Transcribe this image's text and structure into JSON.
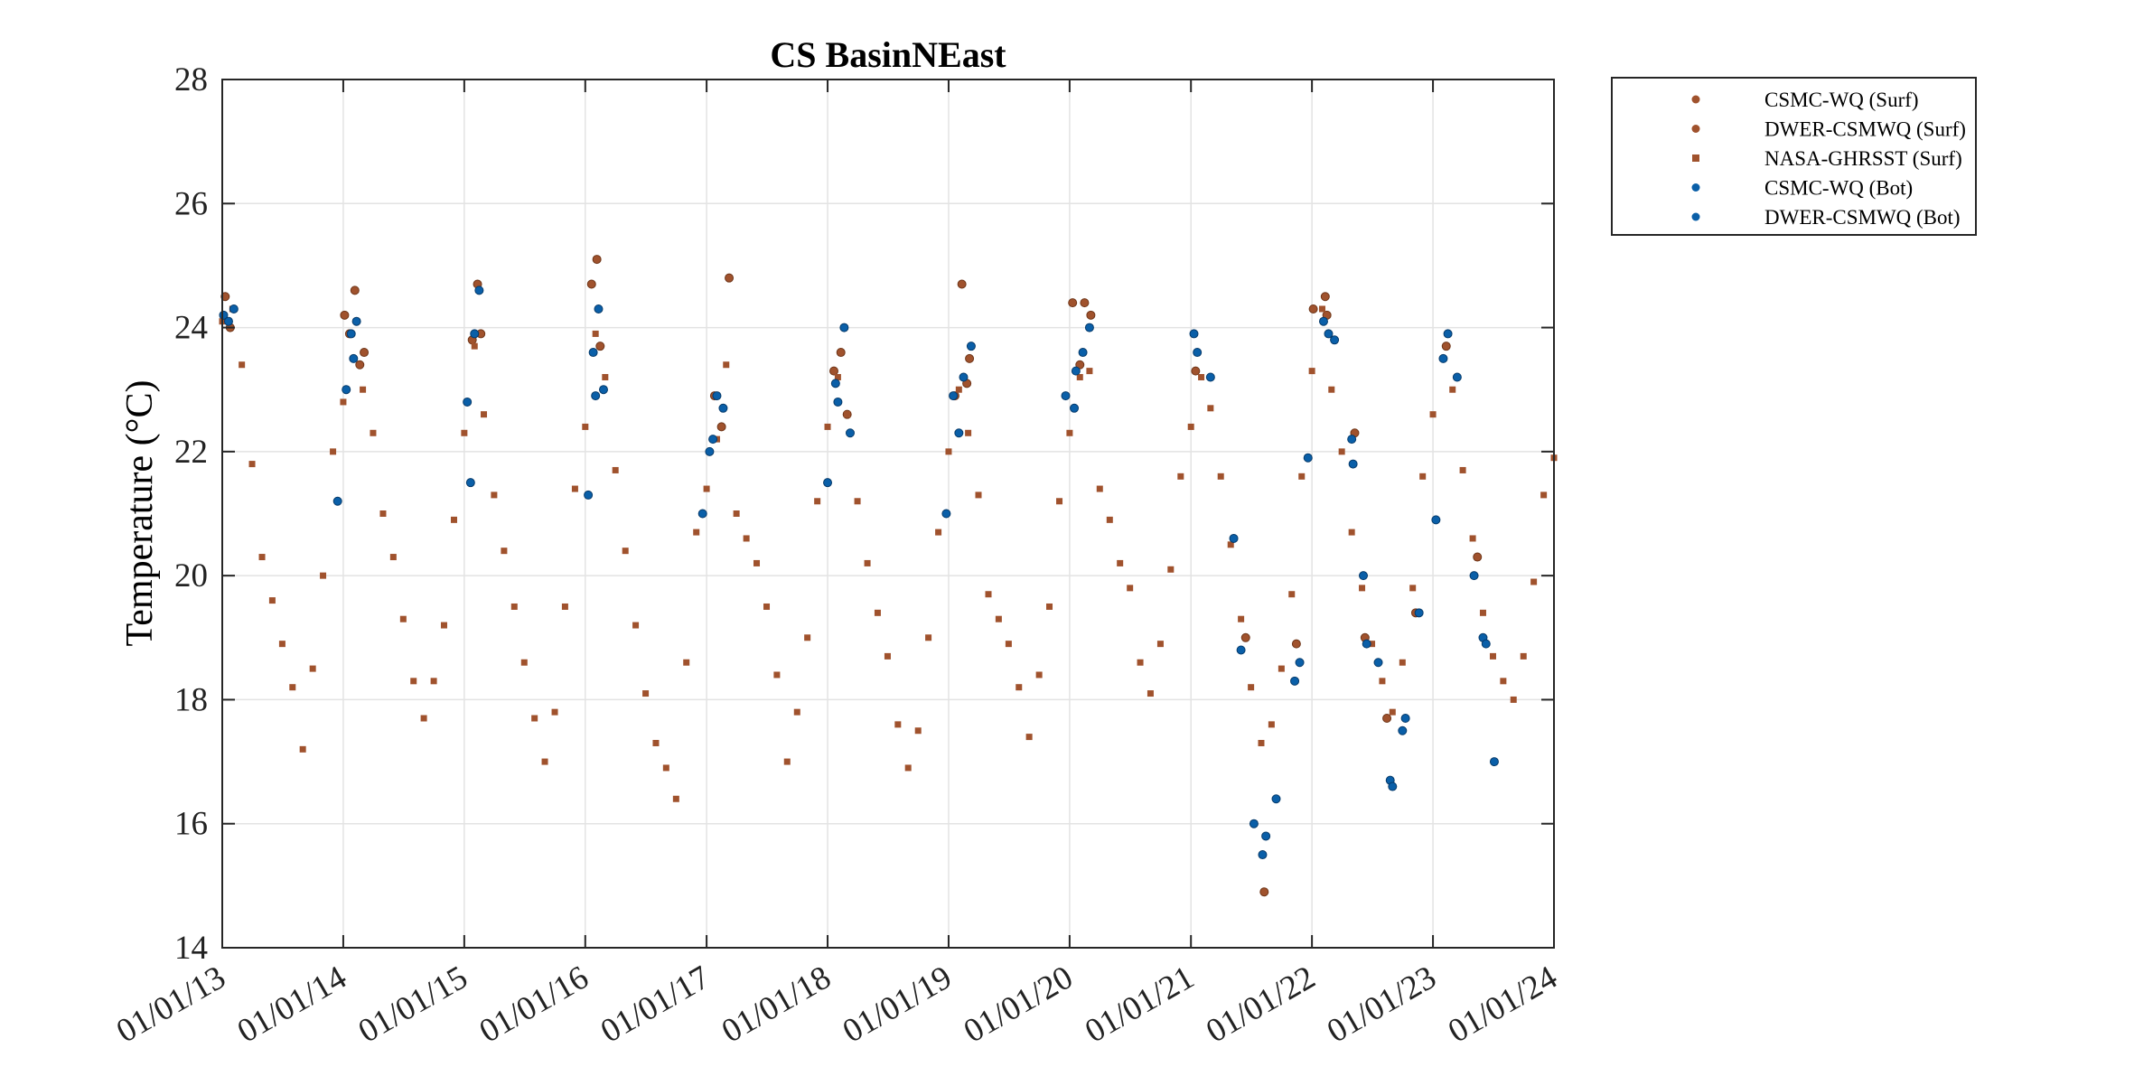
{
  "chart_data": {
    "type": "scatter",
    "title": "CS BasinNEast",
    "ylabel": "Temperature (°C)",
    "xlabel": "",
    "ylim": [
      14,
      28
    ],
    "yticks": [
      14,
      16,
      18,
      20,
      22,
      24,
      26,
      28
    ],
    "xlim": [
      "2013-01-01",
      "2024-01-01"
    ],
    "xticks": [
      "2013-01-01",
      "2014-01-01",
      "2015-01-01",
      "2016-01-01",
      "2017-01-01",
      "2018-01-01",
      "2019-01-01",
      "2020-01-01",
      "2021-01-01",
      "2022-01-01",
      "2023-01-01",
      "2024-01-01"
    ],
    "xtick_labels": [
      "01/01/13",
      "01/01/14",
      "01/01/15",
      "01/01/16",
      "01/01/17",
      "01/01/18",
      "01/01/19",
      "01/01/20",
      "01/01/21",
      "01/01/22",
      "01/01/23",
      "01/01/24"
    ],
    "grid": true,
    "legend_position": "outside-top-right",
    "colors": {
      "surface": "#a0522d",
      "bottom": "#0a5fa8"
    },
    "series": [
      {
        "name": "CSMC-WQ (Surf)",
        "marker": "dot",
        "color": "#a0522d",
        "points": [
          [
            "2013-01-10",
            24.5
          ],
          [
            "2013-01-25",
            24.0
          ],
          [
            "2014-01-05",
            24.2
          ],
          [
            "2014-02-05",
            24.6
          ],
          [
            "2014-03-05",
            23.6
          ],
          [
            "2015-01-25",
            23.8
          ],
          [
            "2015-02-10",
            24.7
          ],
          [
            "2016-01-20",
            24.7
          ],
          [
            "2016-02-05",
            25.1
          ],
          [
            "2017-01-25",
            22.9
          ],
          [
            "2017-03-10",
            24.8
          ],
          [
            "2018-02-10",
            23.6
          ],
          [
            "2019-02-10",
            24.7
          ],
          [
            "2019-03-05",
            23.5
          ],
          [
            "2020-01-10",
            24.4
          ],
          [
            "2020-02-15",
            24.4
          ],
          [
            "2020-03-05",
            24.2
          ],
          [
            "2022-01-05",
            24.3
          ],
          [
            "2022-02-10",
            24.5
          ]
        ]
      },
      {
        "name": "DWER-CSMWQ (Surf)",
        "marker": "dot",
        "color": "#a0522d",
        "points": [
          [
            "2014-01-20",
            23.9
          ],
          [
            "2014-02-20",
            23.4
          ],
          [
            "2015-02-20",
            23.9
          ],
          [
            "2016-02-15",
            23.7
          ],
          [
            "2017-02-15",
            22.4
          ],
          [
            "2018-01-20",
            23.3
          ],
          [
            "2018-03-01",
            22.6
          ],
          [
            "2019-01-20",
            22.9
          ],
          [
            "2019-02-25",
            23.1
          ],
          [
            "2020-02-01",
            23.4
          ],
          [
            "2021-01-15",
            23.3
          ],
          [
            "2021-06-15",
            19.0
          ],
          [
            "2021-08-10",
            14.9
          ],
          [
            "2021-11-15",
            18.9
          ],
          [
            "2022-02-15",
            24.2
          ],
          [
            "2022-05-10",
            22.3
          ],
          [
            "2022-06-10",
            19.0
          ],
          [
            "2022-08-15",
            17.7
          ],
          [
            "2022-11-10",
            19.4
          ],
          [
            "2023-02-10",
            23.7
          ],
          [
            "2023-05-15",
            20.3
          ]
        ]
      },
      {
        "name": "NASA-GHRSST (Surf)",
        "marker": "square",
        "color": "#a0522d",
        "points": [
          [
            "2013-01-01",
            24.1
          ],
          [
            "2013-02-01",
            24.3
          ],
          [
            "2013-03-01",
            23.4
          ],
          [
            "2013-04-01",
            21.8
          ],
          [
            "2013-05-01",
            20.3
          ],
          [
            "2013-06-01",
            19.6
          ],
          [
            "2013-07-01",
            18.9
          ],
          [
            "2013-08-01",
            18.2
          ],
          [
            "2013-09-01",
            17.2
          ],
          [
            "2013-10-01",
            18.5
          ],
          [
            "2013-11-01",
            20.0
          ],
          [
            "2013-12-01",
            22.0
          ],
          [
            "2014-01-01",
            22.8
          ],
          [
            "2014-02-01",
            23.5
          ],
          [
            "2014-03-01",
            23.0
          ],
          [
            "2014-04-01",
            22.3
          ],
          [
            "2014-05-01",
            21.0
          ],
          [
            "2014-06-01",
            20.3
          ],
          [
            "2014-07-01",
            19.3
          ],
          [
            "2014-08-01",
            18.3
          ],
          [
            "2014-09-01",
            17.7
          ],
          [
            "2014-10-01",
            18.3
          ],
          [
            "2014-11-01",
            19.2
          ],
          [
            "2014-12-01",
            20.9
          ],
          [
            "2015-01-01",
            22.3
          ],
          [
            "2015-02-01",
            23.7
          ],
          [
            "2015-03-01",
            22.6
          ],
          [
            "2015-04-01",
            21.3
          ],
          [
            "2015-05-01",
            20.4
          ],
          [
            "2015-06-01",
            19.5
          ],
          [
            "2015-07-01",
            18.6
          ],
          [
            "2015-08-01",
            17.7
          ],
          [
            "2015-09-01",
            17.0
          ],
          [
            "2015-10-01",
            17.8
          ],
          [
            "2015-11-01",
            19.5
          ],
          [
            "2015-12-01",
            21.4
          ],
          [
            "2016-01-01",
            22.4
          ],
          [
            "2016-02-01",
            23.9
          ],
          [
            "2016-03-01",
            23.2
          ],
          [
            "2016-04-01",
            21.7
          ],
          [
            "2016-05-01",
            20.4
          ],
          [
            "2016-06-01",
            19.2
          ],
          [
            "2016-07-01",
            18.1
          ],
          [
            "2016-08-01",
            17.3
          ],
          [
            "2016-09-01",
            16.9
          ],
          [
            "2016-10-01",
            16.4
          ],
          [
            "2016-11-01",
            18.6
          ],
          [
            "2016-12-01",
            20.7
          ],
          [
            "2017-01-01",
            21.4
          ],
          [
            "2017-02-01",
            22.2
          ],
          [
            "2017-03-01",
            23.4
          ],
          [
            "2017-04-01",
            21.0
          ],
          [
            "2017-05-01",
            20.6
          ],
          [
            "2017-06-01",
            20.2
          ],
          [
            "2017-07-01",
            19.5
          ],
          [
            "2017-08-01",
            18.4
          ],
          [
            "2017-09-01",
            17.0
          ],
          [
            "2017-10-01",
            17.8
          ],
          [
            "2017-11-01",
            19.0
          ],
          [
            "2017-12-01",
            21.2
          ],
          [
            "2018-01-01",
            22.4
          ],
          [
            "2018-02-01",
            23.2
          ],
          [
            "2018-03-01",
            22.6
          ],
          [
            "2018-04-01",
            21.2
          ],
          [
            "2018-05-01",
            20.2
          ],
          [
            "2018-06-01",
            19.4
          ],
          [
            "2018-07-01",
            18.7
          ],
          [
            "2018-08-01",
            17.6
          ],
          [
            "2018-09-01",
            16.9
          ],
          [
            "2018-10-01",
            17.5
          ],
          [
            "2018-11-01",
            19.0
          ],
          [
            "2018-12-01",
            20.7
          ],
          [
            "2019-01-01",
            22.0
          ],
          [
            "2019-02-01",
            23.0
          ],
          [
            "2019-03-01",
            22.3
          ],
          [
            "2019-04-01",
            21.3
          ],
          [
            "2019-05-01",
            19.7
          ],
          [
            "2019-06-01",
            19.3
          ],
          [
            "2019-07-01",
            18.9
          ],
          [
            "2019-08-01",
            18.2
          ],
          [
            "2019-09-01",
            17.4
          ],
          [
            "2019-10-01",
            18.4
          ],
          [
            "2019-11-01",
            19.5
          ],
          [
            "2019-12-01",
            21.2
          ],
          [
            "2020-01-01",
            22.3
          ],
          [
            "2020-02-01",
            23.2
          ],
          [
            "2020-03-01",
            23.3
          ],
          [
            "2020-04-01",
            21.4
          ],
          [
            "2020-05-01",
            20.9
          ],
          [
            "2020-06-01",
            20.2
          ],
          [
            "2020-07-01",
            19.8
          ],
          [
            "2020-08-01",
            18.6
          ],
          [
            "2020-09-01",
            18.1
          ],
          [
            "2020-10-01",
            18.9
          ],
          [
            "2020-11-01",
            20.1
          ],
          [
            "2020-12-01",
            21.6
          ],
          [
            "2021-01-01",
            22.4
          ],
          [
            "2021-02-01",
            23.2
          ],
          [
            "2021-03-01",
            22.7
          ],
          [
            "2021-04-01",
            21.6
          ],
          [
            "2021-05-01",
            20.5
          ],
          [
            "2021-06-01",
            19.3
          ],
          [
            "2021-07-01",
            18.2
          ],
          [
            "2021-08-01",
            17.3
          ],
          [
            "2021-09-01",
            17.6
          ],
          [
            "2021-10-01",
            18.5
          ],
          [
            "2021-11-01",
            19.7
          ],
          [
            "2021-12-01",
            21.6
          ],
          [
            "2022-01-01",
            23.3
          ],
          [
            "2022-02-01",
            24.3
          ],
          [
            "2022-03-01",
            23.0
          ],
          [
            "2022-04-01",
            22.0
          ],
          [
            "2022-05-01",
            20.7
          ],
          [
            "2022-06-01",
            19.8
          ],
          [
            "2022-07-01",
            18.9
          ],
          [
            "2022-08-01",
            18.3
          ],
          [
            "2022-09-01",
            17.8
          ],
          [
            "2022-10-01",
            18.6
          ],
          [
            "2022-11-01",
            19.8
          ],
          [
            "2022-12-01",
            21.6
          ],
          [
            "2023-01-01",
            22.6
          ],
          [
            "2023-02-01",
            23.5
          ],
          [
            "2023-03-01",
            23.0
          ],
          [
            "2023-04-01",
            21.7
          ],
          [
            "2023-05-01",
            20.6
          ],
          [
            "2023-06-01",
            19.4
          ],
          [
            "2023-07-01",
            18.7
          ],
          [
            "2023-08-01",
            18.3
          ],
          [
            "2023-09-01",
            18.0
          ],
          [
            "2023-10-01",
            18.7
          ],
          [
            "2023-11-01",
            19.9
          ],
          [
            "2023-12-01",
            21.3
          ],
          [
            "2024-01-01",
            21.9
          ]
        ]
      },
      {
        "name": "CSMC-WQ (Bot)",
        "marker": "dot",
        "color": "#0a5fa8",
        "points": [
          [
            "2013-01-05",
            24.2
          ],
          [
            "2013-01-20",
            24.1
          ],
          [
            "2013-02-05",
            24.3
          ],
          [
            "2013-12-15",
            21.2
          ],
          [
            "2014-01-10",
            23.0
          ],
          [
            "2014-01-25",
            23.9
          ],
          [
            "2014-02-10",
            24.1
          ],
          [
            "2015-01-10",
            22.8
          ],
          [
            "2015-02-01",
            23.9
          ],
          [
            "2015-02-15",
            24.6
          ],
          [
            "2016-01-10",
            21.3
          ],
          [
            "2016-01-25",
            23.6
          ],
          [
            "2016-02-10",
            24.3
          ],
          [
            "2016-02-25",
            23.0
          ],
          [
            "2016-12-20",
            21.0
          ],
          [
            "2017-01-10",
            22.0
          ],
          [
            "2017-02-01",
            22.9
          ],
          [
            "2017-02-20",
            22.7
          ],
          [
            "2018-01-01",
            21.5
          ],
          [
            "2018-01-25",
            23.1
          ],
          [
            "2018-02-20",
            24.0
          ],
          [
            "2018-03-10",
            22.3
          ],
          [
            "2018-12-25",
            21.0
          ],
          [
            "2019-01-15",
            22.9
          ],
          [
            "2019-02-15",
            23.2
          ],
          [
            "2019-03-10",
            23.7
          ],
          [
            "2019-12-20",
            22.9
          ],
          [
            "2020-01-15",
            22.7
          ],
          [
            "2020-02-10",
            23.6
          ],
          [
            "2020-03-01",
            24.0
          ],
          [
            "2021-01-10",
            23.9
          ],
          [
            "2021-03-01",
            23.2
          ],
          [
            "2021-05-10",
            20.6
          ],
          [
            "2021-07-10",
            16.0
          ],
          [
            "2021-08-05",
            15.5
          ],
          [
            "2021-09-15",
            16.4
          ],
          [
            "2021-11-10",
            18.3
          ],
          [
            "2021-12-20",
            21.9
          ],
          [
            "2022-02-05",
            24.1
          ],
          [
            "2022-03-10",
            23.8
          ],
          [
            "2022-05-01",
            22.2
          ],
          [
            "2022-06-05",
            20.0
          ],
          [
            "2022-07-20",
            18.6
          ],
          [
            "2022-08-25",
            16.7
          ],
          [
            "2022-10-01",
            17.5
          ],
          [
            "2022-11-20",
            19.4
          ],
          [
            "2023-01-10",
            20.9
          ],
          [
            "2023-02-01",
            23.5
          ],
          [
            "2023-03-15",
            23.2
          ],
          [
            "2023-05-05",
            20.0
          ],
          [
            "2023-06-01",
            19.0
          ],
          [
            "2023-07-05",
            17.0
          ]
        ]
      },
      {
        "name": "DWER-CSMWQ (Bot)",
        "marker": "dot",
        "color": "#0a5fa8",
        "points": [
          [
            "2014-02-01",
            23.5
          ],
          [
            "2015-01-20",
            21.5
          ],
          [
            "2016-02-01",
            22.9
          ],
          [
            "2017-01-20",
            22.2
          ],
          [
            "2018-02-01",
            22.8
          ],
          [
            "2019-02-01",
            22.3
          ],
          [
            "2020-01-20",
            23.3
          ],
          [
            "2021-01-20",
            23.6
          ],
          [
            "2021-06-01",
            18.8
          ],
          [
            "2021-08-15",
            15.8
          ],
          [
            "2021-11-25",
            18.6
          ],
          [
            "2022-02-20",
            23.9
          ],
          [
            "2022-05-05",
            21.8
          ],
          [
            "2022-06-15",
            18.9
          ],
          [
            "2022-09-01",
            16.6
          ],
          [
            "2022-10-10",
            17.7
          ],
          [
            "2023-02-15",
            23.9
          ],
          [
            "2023-06-10",
            18.9
          ]
        ]
      }
    ]
  }
}
